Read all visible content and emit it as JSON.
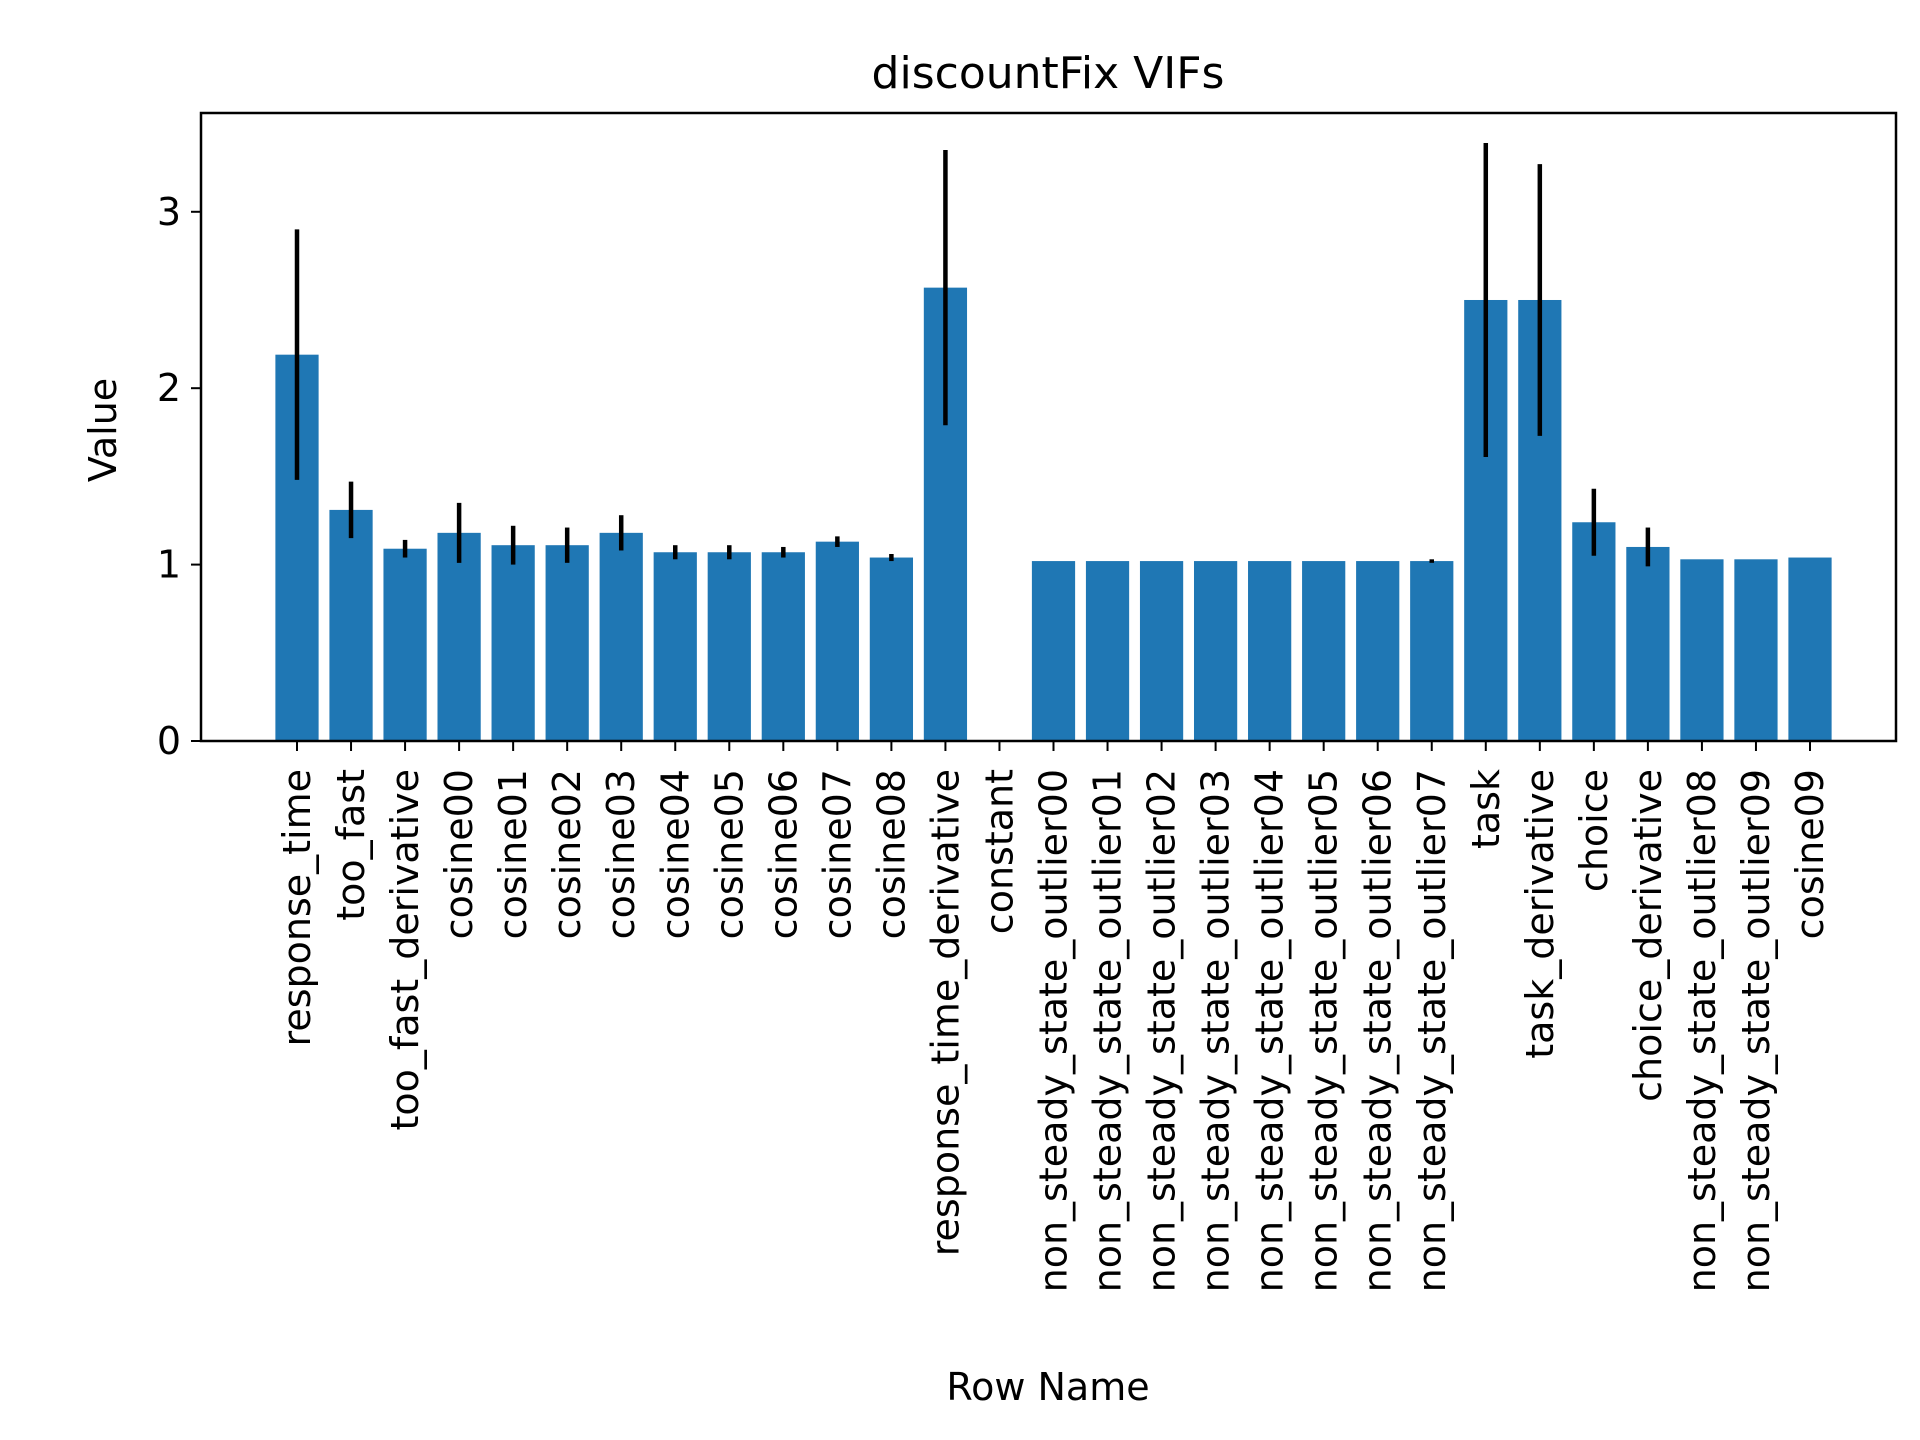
{
  "chart_data": {
    "type": "bar",
    "title": "discountFix VIFs",
    "xlabel": "Row Name",
    "ylabel": "Value",
    "ylim": [
      0,
      3.56
    ],
    "yticks": [
      0,
      1,
      2,
      3
    ],
    "grid": false,
    "bar_color": "#1f77b4",
    "errorbar_color": "#000000",
    "categories": [
      "response_time",
      "too_fast",
      "too_fast_derivative",
      "cosine00",
      "cosine01",
      "cosine02",
      "cosine03",
      "cosine04",
      "cosine05",
      "cosine06",
      "cosine07",
      "cosine08",
      "response_time_derivative",
      "constant",
      "non_steady_state_outlier00",
      "non_steady_state_outlier01",
      "non_steady_state_outlier02",
      "non_steady_state_outlier03",
      "non_steady_state_outlier04",
      "non_steady_state_outlier05",
      "non_steady_state_outlier06",
      "non_steady_state_outlier07",
      "task",
      "task_derivative",
      "choice",
      "choice_derivative",
      "non_steady_state_outlier08",
      "non_steady_state_outlier09",
      "cosine09"
    ],
    "values": [
      2.19,
      1.31,
      1.09,
      1.18,
      1.11,
      1.11,
      1.18,
      1.07,
      1.07,
      1.07,
      1.13,
      1.04,
      2.57,
      0.0,
      1.02,
      1.02,
      1.02,
      1.02,
      1.02,
      1.02,
      1.02,
      1.02,
      2.5,
      2.5,
      1.24,
      1.1,
      1.03,
      1.03,
      1.04
    ],
    "errors": [
      0.71,
      0.16,
      0.05,
      0.17,
      0.11,
      0.1,
      0.1,
      0.04,
      0.04,
      0.03,
      0.03,
      0.02,
      0.78,
      0.0,
      0.0,
      0.0,
      0.0,
      0.0,
      0.0,
      0.0,
      0.0,
      0.01,
      0.89,
      0.77,
      0.19,
      0.11,
      0.0,
      0.0,
      0.0
    ]
  }
}
